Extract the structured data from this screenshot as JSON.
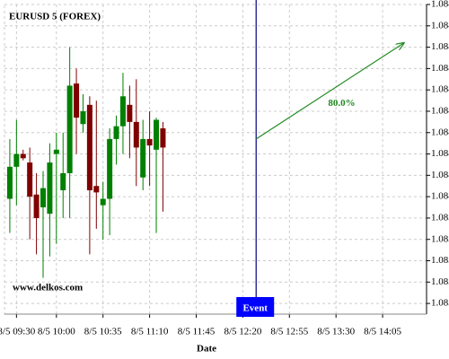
{
  "chart_data": {
    "type": "candlestick",
    "title": "EURUSD 5 (FOREX)",
    "watermark": "www.delkos.com",
    "x_label": "Date",
    "x": [
      565,
      570,
      575,
      580,
      585,
      590,
      595,
      600,
      605,
      610,
      615,
      620,
      625,
      630,
      635,
      640,
      645,
      650,
      655,
      660,
      665,
      670,
      675,
      680
    ],
    "open": [
      1.08399,
      1.08414,
      1.0842,
      1.08416,
      1.08401,
      1.08395,
      1.08392,
      1.0842,
      1.08403,
      1.08411,
      1.08453,
      1.08434,
      1.08443,
      1.08405,
      1.08396,
      1.08399,
      1.08427,
      1.08433,
      1.08443,
      1.08435,
      1.08409,
      1.08427,
      1.08422,
      1.08432
    ],
    "high": [
      1.08427,
      1.08436,
      1.08422,
      1.08423,
      1.08411,
      1.08412,
      1.08425,
      1.0843,
      1.0843,
      1.0847,
      1.0846,
      1.08448,
      1.08447,
      1.08445,
      1.08407,
      1.08432,
      1.08438,
      1.08458,
      1.08452,
      1.08455,
      1.08436,
      1.0844,
      1.08437,
      1.08435
    ],
    "low": [
      1.08383,
      1.08396,
      1.08417,
      1.0838,
      1.08373,
      1.08362,
      1.08372,
      1.08378,
      1.0839,
      1.0839,
      1.0842,
      1.0843,
      1.08373,
      1.08385,
      1.0838,
      1.08382,
      1.08415,
      1.0842,
      1.08418,
      1.08405,
      1.08403,
      1.08405,
      1.08383,
      1.08393
    ],
    "close": [
      1.08414,
      1.0842,
      1.08418,
      1.084,
      1.0839,
      1.08404,
      1.08416,
      1.08422,
      1.08411,
      1.08452,
      1.08437,
      1.0844,
      1.08403,
      1.08402,
      1.08399,
      1.08427,
      1.08433,
      1.08447,
      1.08435,
      1.08423,
      1.08427,
      1.08424,
      1.08436,
      1.08423
    ],
    "up_color": "#008000",
    "down_color": "#800000",
    "xlim": [
      561,
      878
    ],
    "xticks": [
      {
        "value": 570,
        "label": "8/5 09:30"
      },
      {
        "value": 600,
        "label": "8/5 10:00"
      },
      {
        "value": 635,
        "label": "8/5 10:35"
      },
      {
        "value": 670,
        "label": "8/5 11:10"
      },
      {
        "value": 705,
        "label": "8/5 11:45"
      },
      {
        "value": 740,
        "label": "8/5 12:20"
      },
      {
        "value": 775,
        "label": "8/5 12:55"
      },
      {
        "value": 810,
        "label": "8/5 13:30"
      },
      {
        "value": 845,
        "label": "8/5 14:05"
      }
    ],
    "ylim": [
      1.08345,
      1.0849
    ],
    "yticks": [
      1.0835,
      1.0836,
      1.0837,
      1.0838,
      1.0839,
      {
        "value": 1.084,
        "label": "1.0840"
      },
      1.0841,
      1.0842,
      1.0843,
      1.0844,
      1.0845,
      1.0846,
      1.0847,
      1.0848,
      1.0849
    ],
    "grid": true,
    "event": {
      "x": 750,
      "label": "Event",
      "color": "#0000ff"
    },
    "annotation": {
      "x": [
        750,
        861
      ],
      "y": [
        1.08427,
        1.08472
      ],
      "label": "80.0%",
      "color": "#228b22"
    }
  }
}
